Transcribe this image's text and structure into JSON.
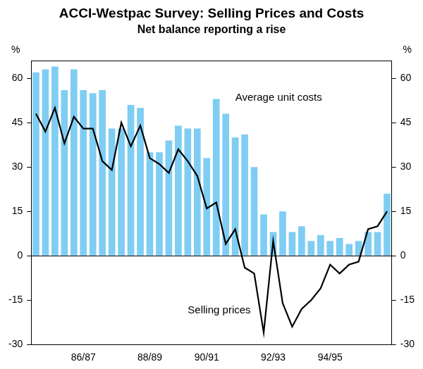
{
  "chart_data": {
    "type": "bar",
    "title": "ACCI-Westpac Survey: Selling Prices and Costs",
    "subtitle": "Net balance reporting a rise",
    "y_label": "%",
    "y2_label": "%",
    "categories": [
      null,
      null,
      null,
      null,
      null,
      "86/87",
      null,
      null,
      null,
      null,
      null,
      null,
      "88/89",
      null,
      null,
      null,
      null,
      null,
      "90/91",
      null,
      null,
      null,
      null,
      null,
      null,
      "92/93",
      null,
      null,
      null,
      null,
      null,
      "94/95",
      null,
      null,
      null,
      null,
      null,
      null
    ],
    "series": [
      {
        "name": "Average unit costs",
        "type": "bar",
        "color": "#7fcdf3",
        "values": [
          62,
          63,
          64,
          56,
          63,
          56,
          55,
          56,
          43,
          43,
          51,
          50,
          35,
          35,
          39,
          44,
          43,
          43,
          33,
          53,
          48,
          40,
          41,
          30,
          14,
          8,
          15,
          8,
          10,
          5,
          7,
          5,
          6,
          4,
          5,
          8,
          8,
          21
        ]
      },
      {
        "name": "Selling prices",
        "type": "line",
        "color": "#000000",
        "axis": "y2",
        "values": [
          48,
          42,
          50,
          38,
          47,
          43,
          43,
          32,
          29,
          45,
          37,
          44,
          33,
          31,
          28,
          36,
          32,
          27,
          16,
          18,
          4,
          9,
          -4,
          -6,
          -26,
          5,
          -16,
          -24,
          -18,
          -15,
          -11,
          -3,
          -6,
          -3,
          -2,
          9,
          10,
          15
        ]
      }
    ],
    "ylim": [
      -30,
      66
    ],
    "yticks": [
      -30,
      -15,
      0,
      15,
      30,
      45,
      60
    ],
    "y2lim": [
      -30,
      66
    ],
    "y2ticks": [
      -30,
      -15,
      0,
      15,
      30,
      45,
      60
    ],
    "grid": false,
    "legend": "none"
  }
}
